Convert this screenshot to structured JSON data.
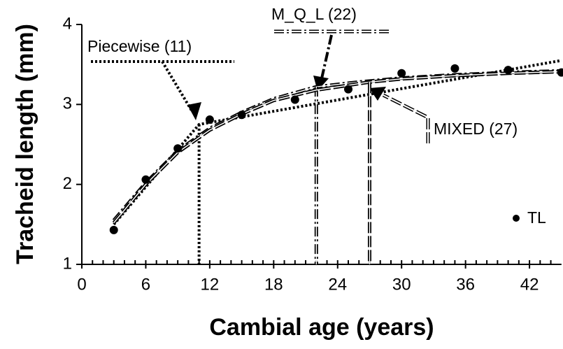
{
  "chart_data": {
    "type": "scatter-fit",
    "x_label": "Cambial age (years)",
    "y_label": "Tracheid length (mm)",
    "xlim": [
      0,
      45
    ],
    "ylim": [
      1,
      4
    ],
    "xticks": [
      0,
      6,
      12,
      18,
      24,
      30,
      36,
      42
    ],
    "yticks": [
      1,
      2,
      3,
      4
    ],
    "legend": "lower right",
    "points": {
      "name": "TL",
      "color": "#000000",
      "x": [
        3,
        6,
        9,
        12,
        15,
        20,
        25,
        30,
        35,
        40,
        45
      ],
      "values": [
        1.43,
        2.06,
        2.45,
        2.81,
        2.87,
        3.06,
        3.19,
        3.39,
        3.45,
        3.43,
        3.4
      ]
    },
    "series": [
      {
        "name": "Piecewise  (11)",
        "style": "dotted",
        "color": "#000000",
        "breakpoint": 11,
        "x": [
          3,
          11,
          45
        ],
        "values": [
          1.5,
          2.75,
          3.55
        ]
      },
      {
        "name": "M_Q_L (22)",
        "style": "dashdot",
        "color": "#000000",
        "breakpoint": 22,
        "x": [
          3,
          6,
          9,
          12,
          15,
          18,
          22,
          26,
          30,
          35,
          40,
          45
        ],
        "values": [
          1.55,
          2.02,
          2.42,
          2.7,
          2.9,
          3.07,
          3.22,
          3.28,
          3.33,
          3.37,
          3.4,
          3.42
        ]
      },
      {
        "name": "MIXED (27)",
        "style": "dashed",
        "color": "#000000",
        "breakpoint": 27,
        "x": [
          3,
          6,
          9,
          12,
          15,
          18,
          22,
          27,
          30,
          35,
          40,
          45
        ],
        "values": [
          1.52,
          2.0,
          2.4,
          2.68,
          2.88,
          3.05,
          3.18,
          3.28,
          3.32,
          3.36,
          3.39,
          3.41
        ]
      }
    ]
  }
}
